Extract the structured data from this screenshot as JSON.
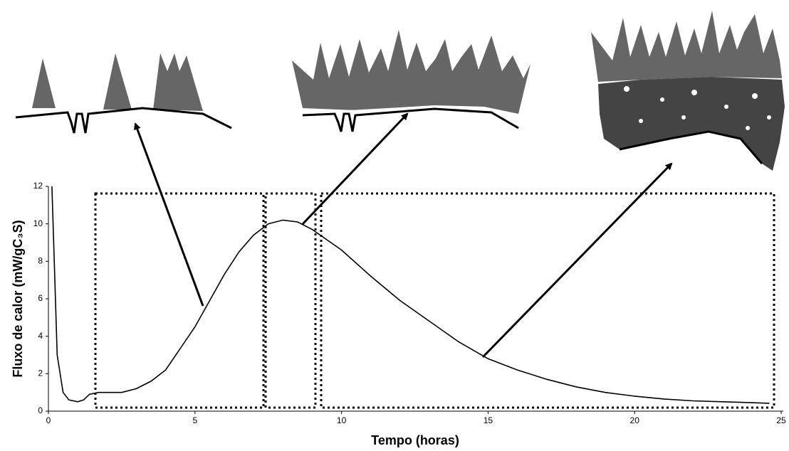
{
  "chart_data": {
    "type": "line",
    "x_label": "Tempo (horas)",
    "y_label": "Fluxo de calor (mW/gC₃S)",
    "x": [
      0.12,
      0.2,
      0.3,
      0.5,
      0.7,
      1.0,
      1.2,
      1.4,
      1.7,
      2.5,
      3.0,
      3.5,
      4.0,
      5.0,
      5.5,
      6.0,
      6.5,
      7.0,
      7.5,
      8.0,
      8.5,
      9.0,
      10,
      11,
      12,
      13,
      14,
      15,
      16,
      17,
      18,
      19,
      20,
      21,
      22,
      23,
      24,
      24.6
    ],
    "values": [
      12,
      8,
      3,
      1,
      0.6,
      0.5,
      0.6,
      0.9,
      1.0,
      1.0,
      1.2,
      1.6,
      2.2,
      4.5,
      5.9,
      7.3,
      8.5,
      9.4,
      10.0,
      10.2,
      10.1,
      9.7,
      8.6,
      7.2,
      5.9,
      4.8,
      3.7,
      2.8,
      2.2,
      1.7,
      1.3,
      1.0,
      0.8,
      0.65,
      0.55,
      0.5,
      0.45,
      0.42
    ],
    "color": "#000000",
    "xlim": [
      0,
      25
    ],
    "xticks": [
      0,
      5,
      10,
      15,
      20,
      25
    ],
    "ylim": [
      0,
      12
    ],
    "yticks": [
      0,
      2,
      4,
      6,
      8,
      10,
      12
    ]
  }
}
